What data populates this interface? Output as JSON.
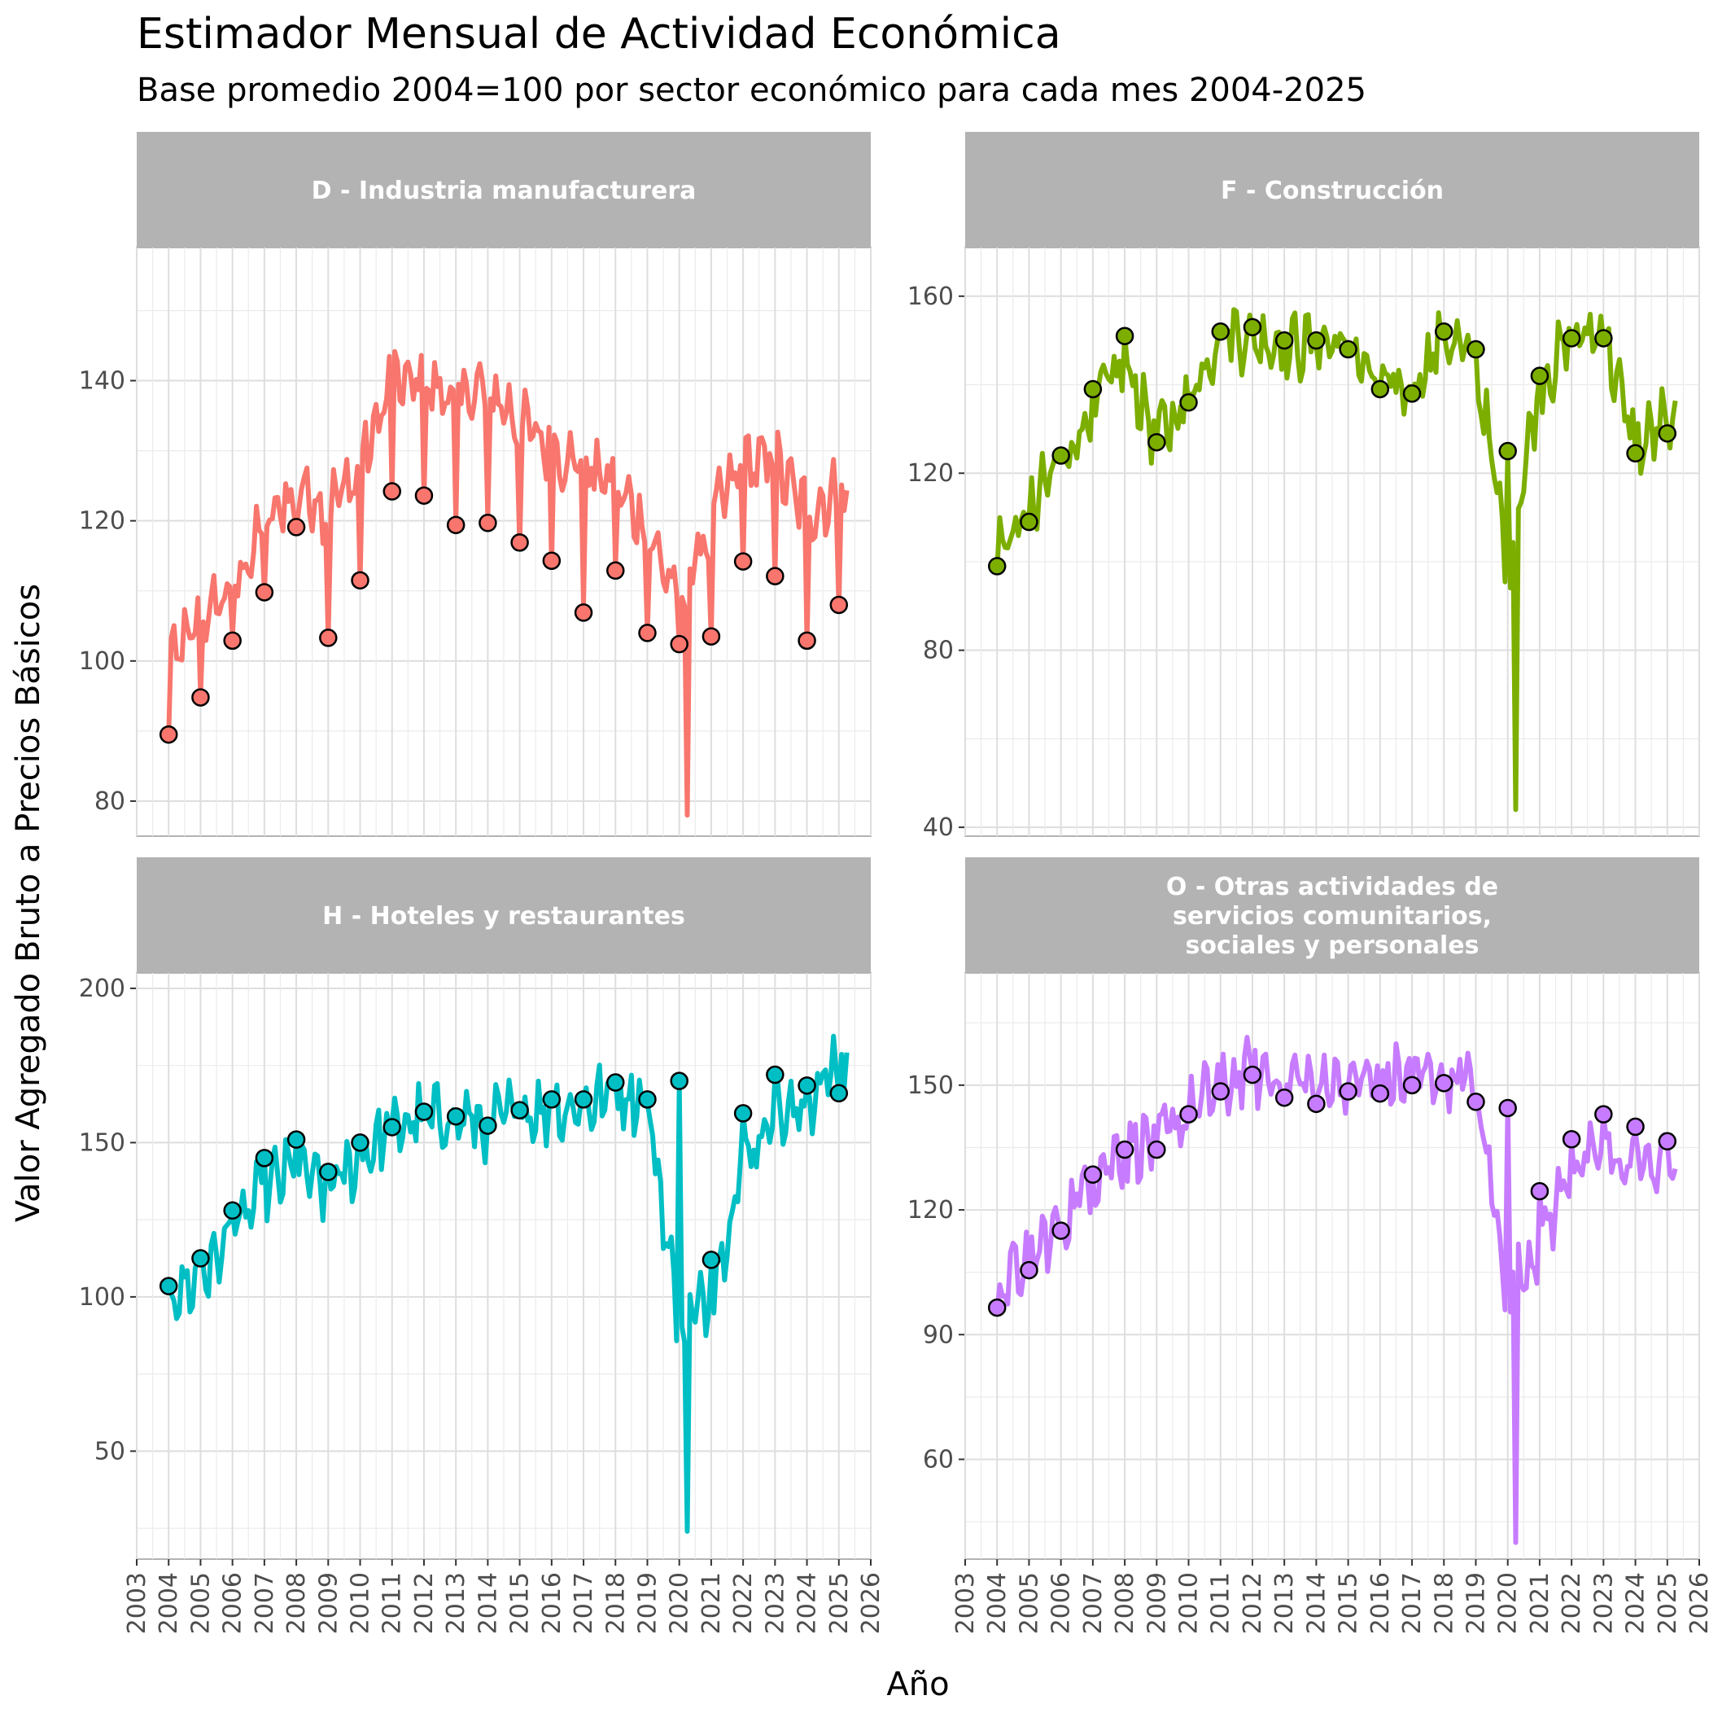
{
  "title": "Estimador Mensual de Actividad Económica",
  "subtitle": "Base promedio 2004=100 por sector económico para cada mes 2004-2025",
  "xlabel": "Año",
  "ylabel": "Valor Agregado Bruto a Precios Básicos",
  "x_ticks": [
    2003,
    2004,
    2005,
    2006,
    2007,
    2008,
    2009,
    2010,
    2011,
    2012,
    2013,
    2014,
    2015,
    2016,
    2017,
    2018,
    2019,
    2020,
    2021,
    2022,
    2023,
    2024,
    2025,
    2026
  ],
  "chart_data": [
    {
      "type": "line",
      "panel": "D - Industria manufacturera",
      "color": "#F8766D",
      "xlim": [
        2003,
        2026
      ],
      "ylim": [
        75,
        159
      ],
      "y_ticks": [
        80,
        100,
        120,
        140
      ],
      "points": {
        "x": [
          2004,
          2005,
          2006,
          2007,
          2008,
          2009,
          2010,
          2011,
          2012,
          2013,
          2014,
          2015,
          2016,
          2017,
          2018,
          2019,
          2020,
          2021,
          2022,
          2023,
          2024,
          2025
        ],
        "y": [
          89.5,
          94.8,
          102.9,
          109.8,
          119.1,
          103.3,
          111.5,
          124.2,
          123.6,
          119.4,
          119.7,
          116.9,
          114.3,
          106.9,
          112.9,
          104.0,
          102.4,
          103.5,
          114.2,
          112.1,
          102.9,
          108.0
        ]
      },
      "annual_means": [
        99.5,
        105.0,
        111.0,
        118.5,
        125.0,
        122.0,
        127.0,
        140.0,
        139.0,
        138.0,
        139.0,
        134.0,
        130.0,
        128.0,
        125.0,
        119.0,
        108.0,
        120.0,
        128.0,
        128.0,
        121.0,
        124.0
      ]
    },
    {
      "type": "line",
      "panel": "F - Construcción",
      "color": "#7CAE00",
      "xlim": [
        2003,
        2026
      ],
      "ylim": [
        38,
        171
      ],
      "y_ticks": [
        40,
        80,
        120,
        160
      ],
      "points": {
        "x": [
          2004,
          2005,
          2006,
          2007,
          2008,
          2009,
          2010,
          2011,
          2012,
          2013,
          2014,
          2015,
          2016,
          2017,
          2018,
          2019,
          2020,
          2021,
          2022,
          2023,
          2024,
          2025
        ],
        "y": [
          99.0,
          109.0,
          124.0,
          139.0,
          151.0,
          127.0,
          136.0,
          152.0,
          153.0,
          150.0,
          150.0,
          148.0,
          139.0,
          138.0,
          152.0,
          148.0,
          125.0,
          142.0,
          150.5,
          150.5,
          124.5,
          129.0
        ]
      },
      "annual_means": [
        102.0,
        112.0,
        122.0,
        135.0,
        145.0,
        128.0,
        137.0,
        152.0,
        151.0,
        149.0,
        149.0,
        150.0,
        138.0,
        140.0,
        150.0,
        145.0,
        100.0,
        140.0,
        150.0,
        152.0,
        125.0,
        132.0
      ]
    },
    {
      "type": "line",
      "panel": "H - Hoteles y restaurantes",
      "color": "#00BFC4",
      "xlim": [
        2003,
        2026
      ],
      "ylim": [
        15,
        205
      ],
      "y_ticks": [
        50,
        100,
        150,
        200
      ],
      "points": {
        "x": [
          2004,
          2005,
          2006,
          2007,
          2008,
          2009,
          2010,
          2011,
          2012,
          2013,
          2014,
          2015,
          2016,
          2017,
          2018,
          2019,
          2020,
          2021,
          2022,
          2023,
          2024,
          2025
        ],
        "y": [
          103.5,
          112.5,
          128.0,
          145.0,
          151.0,
          140.5,
          150.0,
          155.0,
          160.0,
          158.5,
          155.5,
          160.5,
          164.0,
          164.0,
          169.5,
          164.0,
          170.0,
          112.0,
          159.5,
          172.0,
          168.5,
          166.0
        ]
      },
      "annual_means": [
        100.0,
        106.0,
        120.0,
        135.0,
        142.0,
        134.0,
        145.0,
        155.0,
        158.0,
        158.0,
        156.0,
        160.0,
        160.0,
        162.0,
        166.0,
        164.0,
        90.0,
        100.0,
        145.0,
        158.0,
        160.0,
        178.0
      ]
    },
    {
      "type": "line",
      "panel": "O - Otras actividades de\nservicios comunitarios,\nsociales y personales",
      "color": "#C77CFF",
      "xlim": [
        2003,
        2026
      ],
      "ylim": [
        36,
        177
      ],
      "y_ticks": [
        60,
        90,
        120,
        150
      ],
      "points": {
        "x": [
          2004,
          2005,
          2006,
          2007,
          2008,
          2009,
          2010,
          2011,
          2012,
          2013,
          2014,
          2015,
          2016,
          2017,
          2018,
          2019,
          2020,
          2021,
          2022,
          2023,
          2024,
          2025
        ],
        "y": [
          96.5,
          105.5,
          115.0,
          128.5,
          134.5,
          134.5,
          143.0,
          148.5,
          152.5,
          147.0,
          145.5,
          148.5,
          148.0,
          150.0,
          150.5,
          146.0,
          144.5,
          124.5,
          137.0,
          143.0,
          140.0,
          136.5
        ]
      },
      "annual_means": [
        101.0,
        108.0,
        117.0,
        128.0,
        135.0,
        137.0,
        143.0,
        150.0,
        153.0,
        152.0,
        151.0,
        152.0,
        151.0,
        152.0,
        153.0,
        150.0,
        100.0,
        112.0,
        130.0,
        133.0,
        130.0,
        132.0
      ]
    }
  ]
}
